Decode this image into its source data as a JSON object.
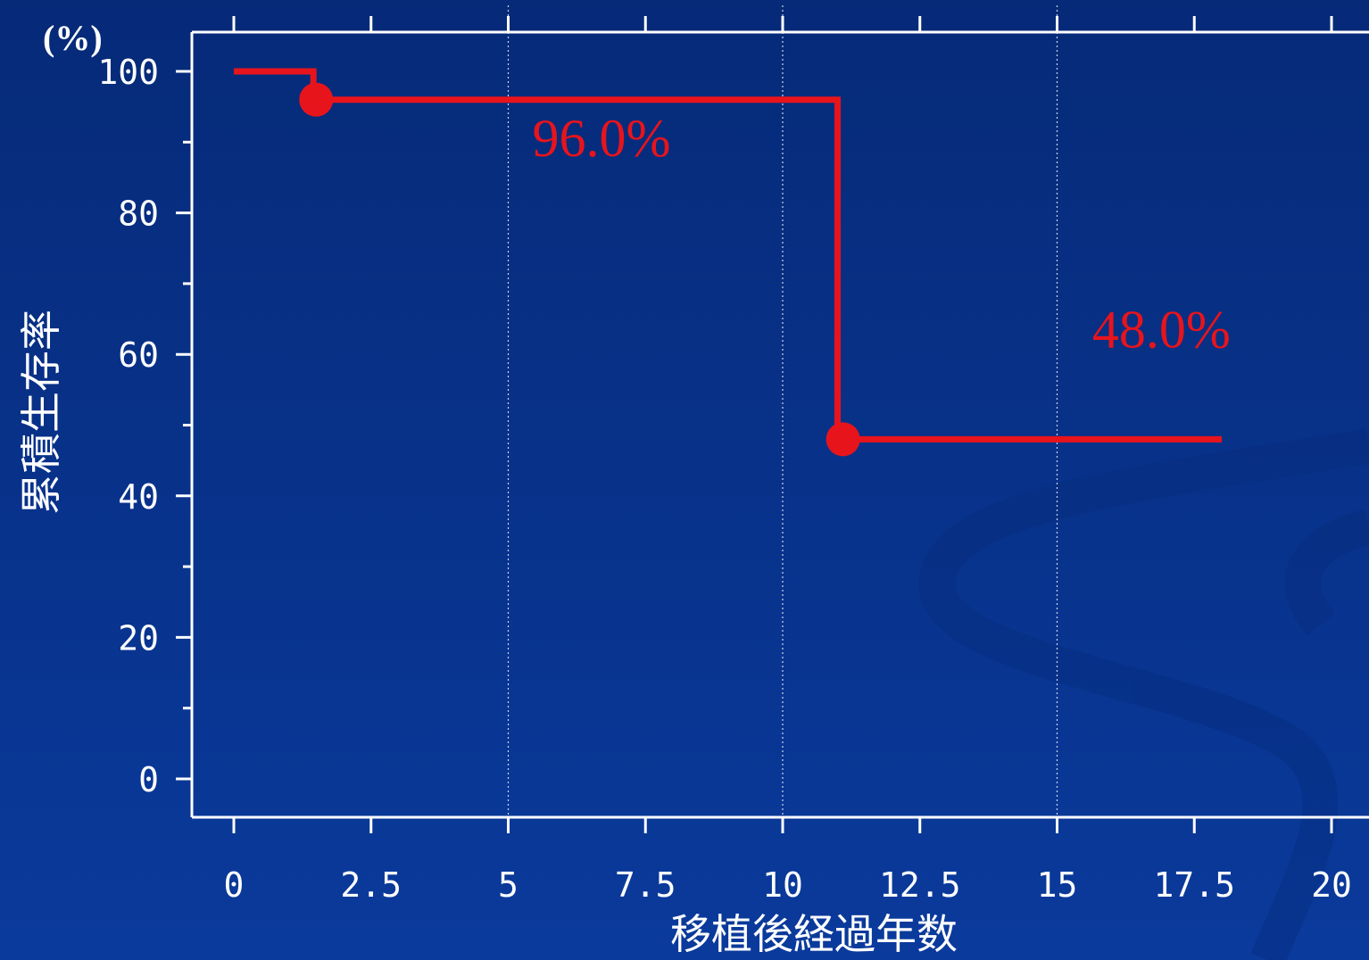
{
  "chart_data": {
    "type": "line",
    "step": true,
    "title": "",
    "xlabel": "移植後経過年数",
    "ylabel": "累積生存率",
    "yunit": "(%)",
    "xlim": [
      0,
      20
    ],
    "ylim": [
      0,
      100
    ],
    "xticks": [
      "0",
      "2.5",
      "5",
      "7.5",
      "10",
      "12.5",
      "15",
      "17.5",
      "20"
    ],
    "xtick_values": [
      0,
      2.5,
      5,
      7.5,
      10,
      12.5,
      15,
      17.5,
      20
    ],
    "yticks": [
      "0",
      "20",
      "40",
      "60",
      "80",
      "100"
    ],
    "ytick_values": [
      0,
      20,
      40,
      60,
      80,
      100
    ],
    "grid": {
      "x_major_at": [
        5,
        10,
        15
      ],
      "y": false
    },
    "series": [
      {
        "color": "#e8141c",
        "steps": [
          {
            "x": 0,
            "y": 100
          },
          {
            "x": 1.45,
            "y": 100
          },
          {
            "x": 1.45,
            "y": 96
          },
          {
            "x": 11.0,
            "y": 96
          },
          {
            "x": 11.0,
            "y": 48
          },
          {
            "x": 18.0,
            "y": 48
          }
        ],
        "events": [
          {
            "x": 1.5,
            "y": 96
          },
          {
            "x": 11.1,
            "y": 48
          }
        ]
      }
    ],
    "annotations": [
      {
        "text": "96.0%",
        "x": 6.7,
        "y": 88
      },
      {
        "text": "48.0%",
        "x": 16.9,
        "y": 61
      }
    ],
    "colors": {
      "background_top": "#062a78",
      "background_bottom": "#0a3a9c",
      "axis": "#ffffff",
      "gridline": "#ffffff",
      "series": "#e8141c"
    }
  }
}
